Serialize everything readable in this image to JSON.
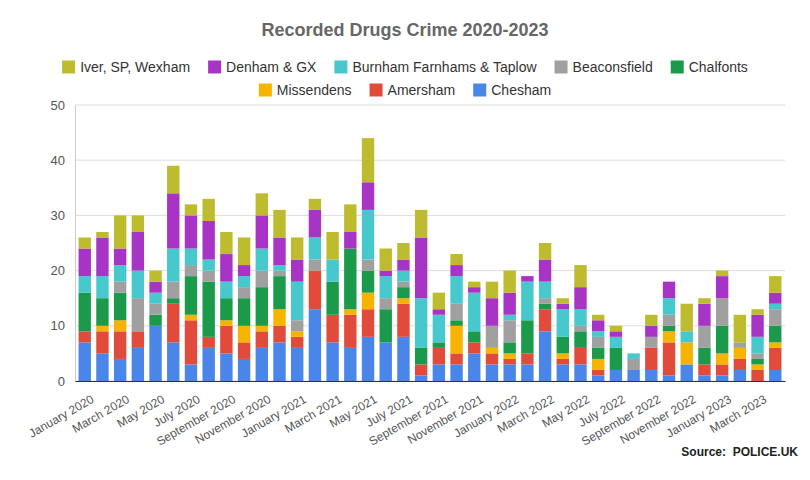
{
  "chart_data": {
    "type": "bar",
    "stacked": true,
    "grid": true,
    "legend": "top",
    "title": "Recorded Drugs Crime 2020-2023",
    "source": "Source:  POLICE.UK",
    "categories": [
      "January 2020",
      null,
      "March 2020",
      null,
      "May 2020",
      null,
      "July 2020",
      null,
      "September 2020",
      null,
      "November 2020",
      null,
      "January 2021",
      null,
      "March 2021",
      null,
      "May 2021",
      null,
      "July 2021",
      null,
      "September 2021",
      null,
      "November 2021",
      null,
      "January 2022",
      null,
      "March 2022",
      null,
      "May 2022",
      null,
      "July 2022",
      null,
      "September 2022",
      null,
      "November 2022",
      null,
      "January 2023",
      null,
      "March 2023",
      null
    ],
    "ylim": [
      0,
      50
    ],
    "yticks": [
      0,
      10,
      20,
      30,
      40,
      50
    ],
    "series": [
      {
        "name": "Iver, SP, Wexham",
        "color": "#bdbb2e",
        "values": [
          2,
          1,
          6,
          3,
          2,
          5,
          2,
          4,
          4,
          5,
          4,
          5,
          4,
          2,
          5,
          5,
          8,
          4,
          3,
          5,
          3,
          2,
          1,
          3,
          4,
          0,
          3,
          1,
          4,
          1,
          1,
          0,
          2,
          0,
          5,
          1,
          1,
          5,
          1,
          3
        ]
      },
      {
        "name": "Denham & GX",
        "color": "#a834c6",
        "values": [
          5,
          7,
          3,
          7,
          2,
          10,
          6,
          7,
          5,
          2,
          6,
          5,
          4,
          5,
          0,
          3,
          5,
          1,
          2,
          11,
          1,
          2,
          1,
          5,
          4,
          1,
          4,
          1,
          4,
          2,
          1,
          0,
          2,
          3,
          0,
          4,
          4,
          0,
          4,
          2
        ]
      },
      {
        "name": "Burnham Farnhams & Taplow",
        "color": "#46c8cc",
        "values": [
          3,
          4,
          3,
          5,
          2,
          6,
          3,
          2,
          3,
          2,
          4,
          1,
          7,
          4,
          4,
          0,
          9,
          4,
          2,
          9,
          5,
          5,
          7,
          0,
          1,
          7,
          3,
          5,
          3,
          1,
          2,
          1,
          0,
          3,
          2,
          0,
          0,
          0,
          3,
          1
        ]
      },
      {
        "name": "Beaconsfield",
        "color": "#a0a0a0",
        "values": [
          0,
          0,
          2,
          6,
          2,
          3,
          2,
          2,
          0,
          2,
          3,
          1,
          2,
          2,
          0,
          0,
          2,
          2,
          1,
          0,
          0,
          3,
          0,
          4,
          4,
          0,
          1,
          0,
          1,
          2,
          0,
          2,
          2,
          2,
          0,
          4,
          5,
          1,
          1,
          3
        ]
      },
      {
        "name": "Chalfonts",
        "color": "#1b9a4b",
        "values": [
          7,
          5,
          5,
          0,
          2,
          1,
          7,
          10,
          4,
          5,
          7,
          6,
          0,
          0,
          6,
          11,
          4,
          6,
          2,
          3,
          1,
          1,
          2,
          0,
          2,
          6,
          1,
          3,
          3,
          2,
          4,
          0,
          0,
          1,
          0,
          3,
          5,
          0,
          1,
          3
        ]
      },
      {
        "name": "Missendens",
        "color": "#f6b400",
        "values": [
          0,
          1,
          2,
          0,
          0,
          0,
          1,
          0,
          1,
          3,
          1,
          3,
          1,
          0,
          0,
          1,
          3,
          0,
          1,
          0,
          0,
          5,
          0,
          1,
          1,
          0,
          0,
          1,
          0,
          2,
          0,
          0,
          0,
          2,
          4,
          0,
          2,
          2,
          1,
          1
        ]
      },
      {
        "name": "Amersham",
        "color": "#e14b3c",
        "values": [
          2,
          4,
          5,
          3,
          0,
          7,
          8,
          2,
          5,
          3,
          3,
          3,
          2,
          7,
          5,
          6,
          5,
          0,
          6,
          2,
          3,
          2,
          2,
          2,
          1,
          2,
          4,
          1,
          3,
          1,
          0,
          0,
          4,
          6,
          0,
          2,
          2,
          2,
          2,
          4
        ]
      },
      {
        "name": "Chesham",
        "color": "#4a86e8",
        "values": [
          7,
          5,
          4,
          6,
          10,
          7,
          3,
          6,
          5,
          4,
          6,
          7,
          6,
          13,
          7,
          6,
          8,
          7,
          8,
          1,
          3,
          3,
          5,
          3,
          3,
          3,
          9,
          3,
          3,
          1,
          2,
          2,
          2,
          1,
          3,
          1,
          1,
          2,
          0,
          2
        ]
      }
    ]
  }
}
